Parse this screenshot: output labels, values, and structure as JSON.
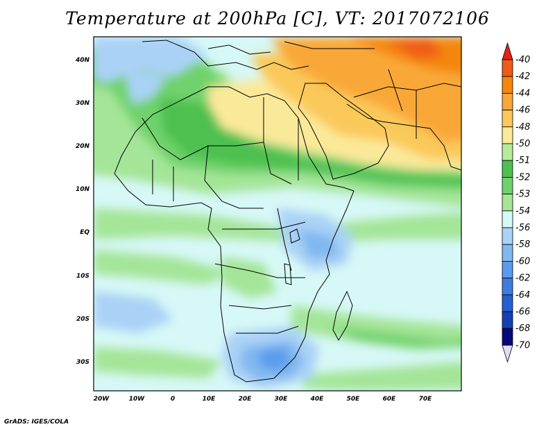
{
  "title": "Temperature at 200hPa [C], VT: 2017072106",
  "credit": "GrADS: IGES/COLA",
  "map": {
    "lon_ticks": [
      "20W",
      "10W",
      "0",
      "10E",
      "20E",
      "30E",
      "40E",
      "50E",
      "60E",
      "70E"
    ],
    "lat_ticks": [
      "40N",
      "30N",
      "20N",
      "10N",
      "EQ",
      "10S",
      "20S",
      "30S"
    ]
  },
  "colorbar": {
    "labels": [
      "-40",
      "-42",
      "-44",
      "-46",
      "-48",
      "-50",
      "-51",
      "-52",
      "-53",
      "-54",
      "-56",
      "-58",
      "-60",
      "-62",
      "-64",
      "-66",
      "-68",
      "-70"
    ],
    "colors": [
      "#e8201a",
      "#f05c16",
      "#f5860f",
      "#f9a838",
      "#fac95a",
      "#fbe99a",
      "#b7ea9a",
      "#4dc04f",
      "#6fd26c",
      "#a4e598",
      "#d6f8f7",
      "#aad2f6",
      "#80b8f0",
      "#5c9bec",
      "#3c7ddf",
      "#2360d2",
      "#1440b6",
      "#060a78"
    ]
  }
}
